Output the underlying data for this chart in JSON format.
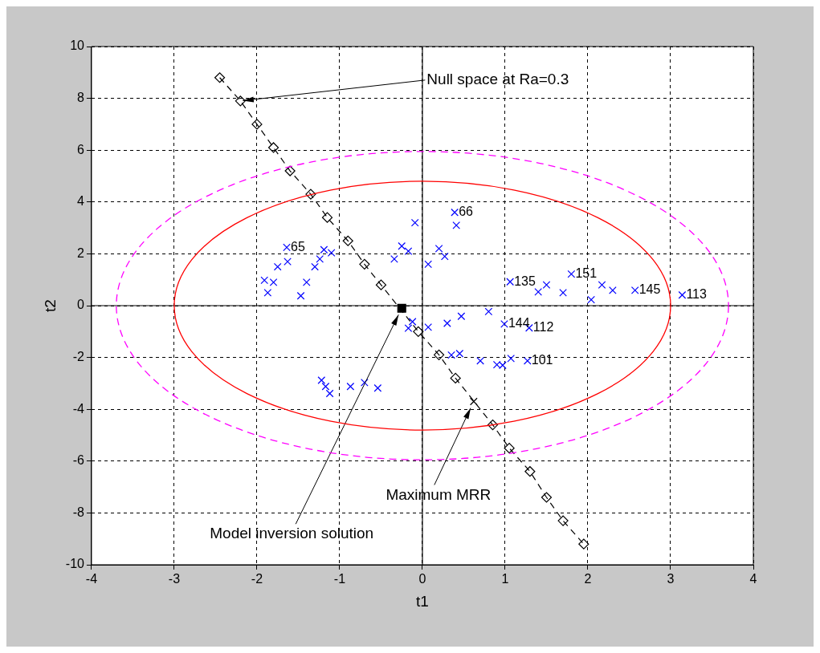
{
  "chart_data": {
    "type": "scatter",
    "xlabel": "t1",
    "ylabel": "t2",
    "xlim": [
      -4,
      4
    ],
    "xticks": [
      -4,
      -3,
      -2,
      -1,
      0,
      1,
      2,
      3,
      4
    ],
    "ylim": [
      -10,
      10
    ],
    "yticks": [
      -10,
      -8,
      -6,
      -4,
      -2,
      0,
      2,
      4,
      6,
      8,
      10
    ],
    "grid": true,
    "legend": false,
    "annotations": [
      {
        "text": "Null space at Ra=0.3",
        "x": -2.2,
        "y": 7.9
      },
      {
        "text": "Model inversion solution",
        "x": -0.25,
        "y": -0.1
      },
      {
        "text": "Maximum MRR",
        "x": 0.62,
        "y": -3.7
      },
      {
        "text": "65",
        "x": -1.64,
        "y": 2.25
      },
      {
        "text": "66",
        "x": 0.39,
        "y": 3.6
      },
      {
        "text": "135",
        "x": 1.06,
        "y": 0.92
      },
      {
        "text": "151",
        "x": 1.8,
        "y": 1.22
      },
      {
        "text": "145",
        "x": 2.57,
        "y": 0.59
      },
      {
        "text": "113",
        "x": 3.14,
        "y": 0.41
      },
      {
        "text": "144",
        "x": 0.99,
        "y": -0.71
      },
      {
        "text": "112",
        "x": 1.29,
        "y": -0.86
      },
      {
        "text": "101",
        "x": 1.27,
        "y": -2.13
      }
    ],
    "series": [
      {
        "type": "scatter",
        "color": "#0000ff",
        "marker": "cross",
        "x": [
          -1.91,
          -1.87,
          -1.64,
          -1.63,
          -1.75,
          -1.8,
          -1.47,
          -1.4,
          -1.3,
          -1.19,
          -1.24,
          -1.1,
          -0.34,
          -0.25,
          -0.09,
          0.07,
          0.2,
          0.39,
          0.41,
          0.27,
          -0.17,
          1.06,
          1.8,
          1.4,
          1.5,
          1.7,
          2.04,
          2.17,
          2.3,
          2.57,
          3.14,
          -0.12,
          -0.17,
          0.07,
          0.47,
          0.8,
          0.99,
          1.29,
          0.3,
          0.35,
          0.45,
          0.7,
          0.9,
          1.07,
          1.27,
          0.97,
          -1.22,
          -1.17,
          -1.12,
          -0.87,
          -0.7,
          -0.54
        ],
        "values": [
          0.98,
          0.5,
          2.25,
          1.7,
          1.5,
          0.9,
          0.38,
          0.9,
          1.5,
          2.16,
          1.8,
          2.04,
          1.8,
          2.3,
          3.2,
          1.6,
          2.2,
          3.6,
          3.1,
          1.9,
          2.1,
          0.92,
          1.22,
          0.53,
          0.8,
          0.5,
          0.23,
          0.8,
          0.59,
          0.59,
          0.41,
          -0.62,
          -0.87,
          -0.83,
          -0.41,
          -0.23,
          -0.71,
          -0.86,
          -0.68,
          -1.91,
          -1.85,
          -2.13,
          -2.28,
          -2.04,
          -2.13,
          -2.3,
          -2.88,
          -3.12,
          -3.39,
          -3.12,
          -2.97,
          -3.18
        ]
      },
      {
        "type": "line",
        "color": "#000000",
        "marker": "diamond",
        "line_style": "dashed",
        "x": [
          -2.45,
          -2.2,
          -2,
          -1.8,
          -1.6,
          -1.35,
          -1.15,
          -0.9,
          -0.7,
          -0.5,
          -0.05,
          0.2,
          0.4,
          0.85,
          1.05,
          1.3,
          1.5,
          1.7,
          1.95
        ],
        "values": [
          8.8,
          7.9,
          7,
          6.1,
          5.2,
          4.3,
          3.4,
          2.5,
          1.6,
          0.8,
          -1,
          -1.9,
          -2.8,
          -4.6,
          -5.5,
          -6.4,
          -7.4,
          -8.3,
          -9.2
        ]
      },
      {
        "type": "scatter",
        "color": "#000000",
        "marker": "square",
        "x": [
          -0.25
        ],
        "values": [
          -0.1
        ]
      },
      {
        "type": "scatter",
        "color": "#000000",
        "marker": "cross",
        "x": [
          0.62
        ],
        "values": [
          -3.7
        ]
      }
    ]
  }
}
